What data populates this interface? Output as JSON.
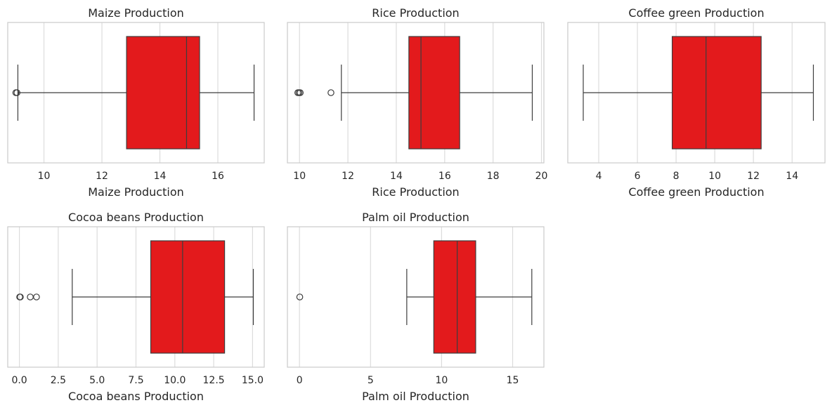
{
  "chart_data": [
    {
      "type": "box",
      "title": "Maize Production",
      "xlabel": "Maize Production",
      "ylabel": "",
      "xlim": [
        8.75,
        17.6
      ],
      "ticks": [
        10,
        12,
        14,
        16
      ],
      "tick_labels": [
        "10",
        "12",
        "14",
        "16"
      ],
      "box": {
        "whisker_low": 9.1,
        "q1": 12.85,
        "median": 14.92,
        "q3": 15.37,
        "whisker_high": 17.25
      },
      "outliers": [
        9.03,
        9.07
      ],
      "grid": true,
      "color": "#e31a1c"
    },
    {
      "type": "box",
      "title": "Rice Production",
      "xlabel": "Rice Production",
      "ylabel": "",
      "xlim": [
        9.5,
        20.1
      ],
      "ticks": [
        10,
        12,
        14,
        16,
        18,
        20
      ],
      "tick_labels": [
        "10",
        "12",
        "14",
        "16",
        "18",
        "20"
      ],
      "box": {
        "whisker_low": 11.73,
        "q1": 14.52,
        "median": 15.02,
        "q3": 16.62,
        "whisker_high": 19.62
      },
      "outliers": [
        9.93,
        9.98,
        10.03,
        11.3
      ],
      "grid": true,
      "color": "#e31a1c"
    },
    {
      "type": "box",
      "title": "Coffee green Production",
      "xlabel": "Coffee green Production",
      "ylabel": "",
      "xlim": [
        2.4,
        15.7
      ],
      "ticks": [
        4,
        6,
        8,
        10,
        12,
        14
      ],
      "tick_labels": [
        "4",
        "6",
        "8",
        "10",
        "12",
        "14"
      ],
      "box": {
        "whisker_low": 3.2,
        "q1": 7.8,
        "median": 9.55,
        "q3": 12.4,
        "whisker_high": 15.1
      },
      "outliers": [],
      "grid": true,
      "color": "#e31a1c"
    },
    {
      "type": "box",
      "title": "Cocoa beans Production",
      "xlabel": "Cocoa beans Production",
      "ylabel": "",
      "xlim": [
        -0.75,
        15.75
      ],
      "ticks": [
        0,
        2.5,
        5,
        7.5,
        10,
        12.5,
        15
      ],
      "tick_labels": [
        "0.0",
        "2.5",
        "5.0",
        "7.5",
        "10.0",
        "12.5",
        "15.0"
      ],
      "box": {
        "whisker_low": 3.4,
        "q1": 8.45,
        "median": 10.5,
        "q3": 13.2,
        "whisker_high": 15.05
      },
      "outliers": [
        0.02,
        0.06,
        0.7,
        1.1
      ],
      "grid": true,
      "color": "#e31a1c"
    },
    {
      "type": "box",
      "title": "Palm oil Production",
      "xlabel": "Palm oil Production",
      "ylabel": "",
      "xlim": [
        -0.85,
        17.2
      ],
      "ticks": [
        0,
        5,
        10,
        15
      ],
      "tick_labels": [
        "0",
        "5",
        "10",
        "15"
      ],
      "box": {
        "whisker_low": 7.55,
        "q1": 9.45,
        "median": 11.1,
        "q3": 12.4,
        "whisker_high": 16.35
      },
      "outliers": [
        0.02
      ],
      "grid": true,
      "color": "#e31a1c"
    }
  ]
}
